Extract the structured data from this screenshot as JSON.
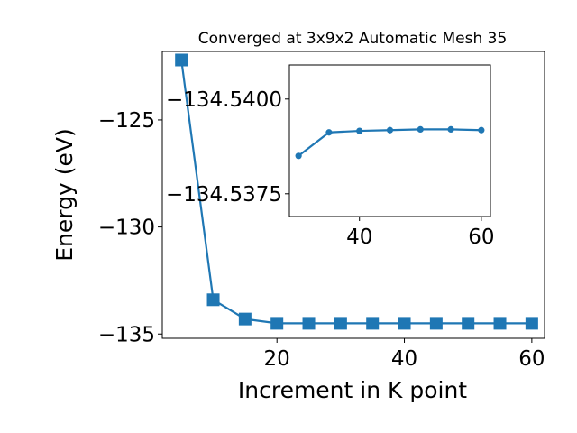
{
  "chart_data": [
    {
      "type": "line",
      "title": "Converged at 3x9x2 Automatic Mesh 35",
      "xlabel": "Increment in K point",
      "ylabel": "Energy (eV)",
      "xlim": [
        2,
        62
      ],
      "ylim": [
        -135.2,
        -121.8
      ],
      "xticks": [
        20,
        40,
        60
      ],
      "yticks": [
        -125,
        -130,
        -135
      ],
      "xtick_labels": [
        "20",
        "40",
        "60"
      ],
      "ytick_labels": [
        "−125",
        "−130",
        "−135"
      ],
      "marker": "square",
      "color": "#1f77b4",
      "series": [
        {
          "x": [
            5,
            10,
            15,
            20,
            25,
            30,
            35,
            40,
            45,
            50,
            55,
            60
          ],
          "y": [
            -122.2,
            -133.4,
            -134.3,
            -134.5,
            -134.5,
            -134.5,
            -134.5,
            -134.5,
            -134.5,
            -134.5,
            -134.5,
            -134.5
          ]
        }
      ]
    },
    {
      "type": "line",
      "title": "",
      "xlabel": "",
      "ylabel": "",
      "inset": true,
      "xlim": [
        28.5,
        61.5
      ],
      "ylim": [
        -134.5369,
        -134.5409
      ],
      "xticks": [
        40,
        60
      ],
      "yticks": [
        -134.54,
        -134.5375
      ],
      "xtick_labels": [
        "40",
        "60"
      ],
      "ytick_labels": [
        "−134.5400",
        "−134.5375"
      ],
      "marker": "circle",
      "color": "#1f77b4",
      "series": [
        {
          "x": [
            30,
            35,
            40,
            45,
            50,
            55,
            60
          ],
          "y": [
            -134.5385,
            -134.53912,
            -134.53916,
            -134.53918,
            -134.5392,
            -134.5392,
            -134.53918
          ]
        }
      ]
    }
  ]
}
